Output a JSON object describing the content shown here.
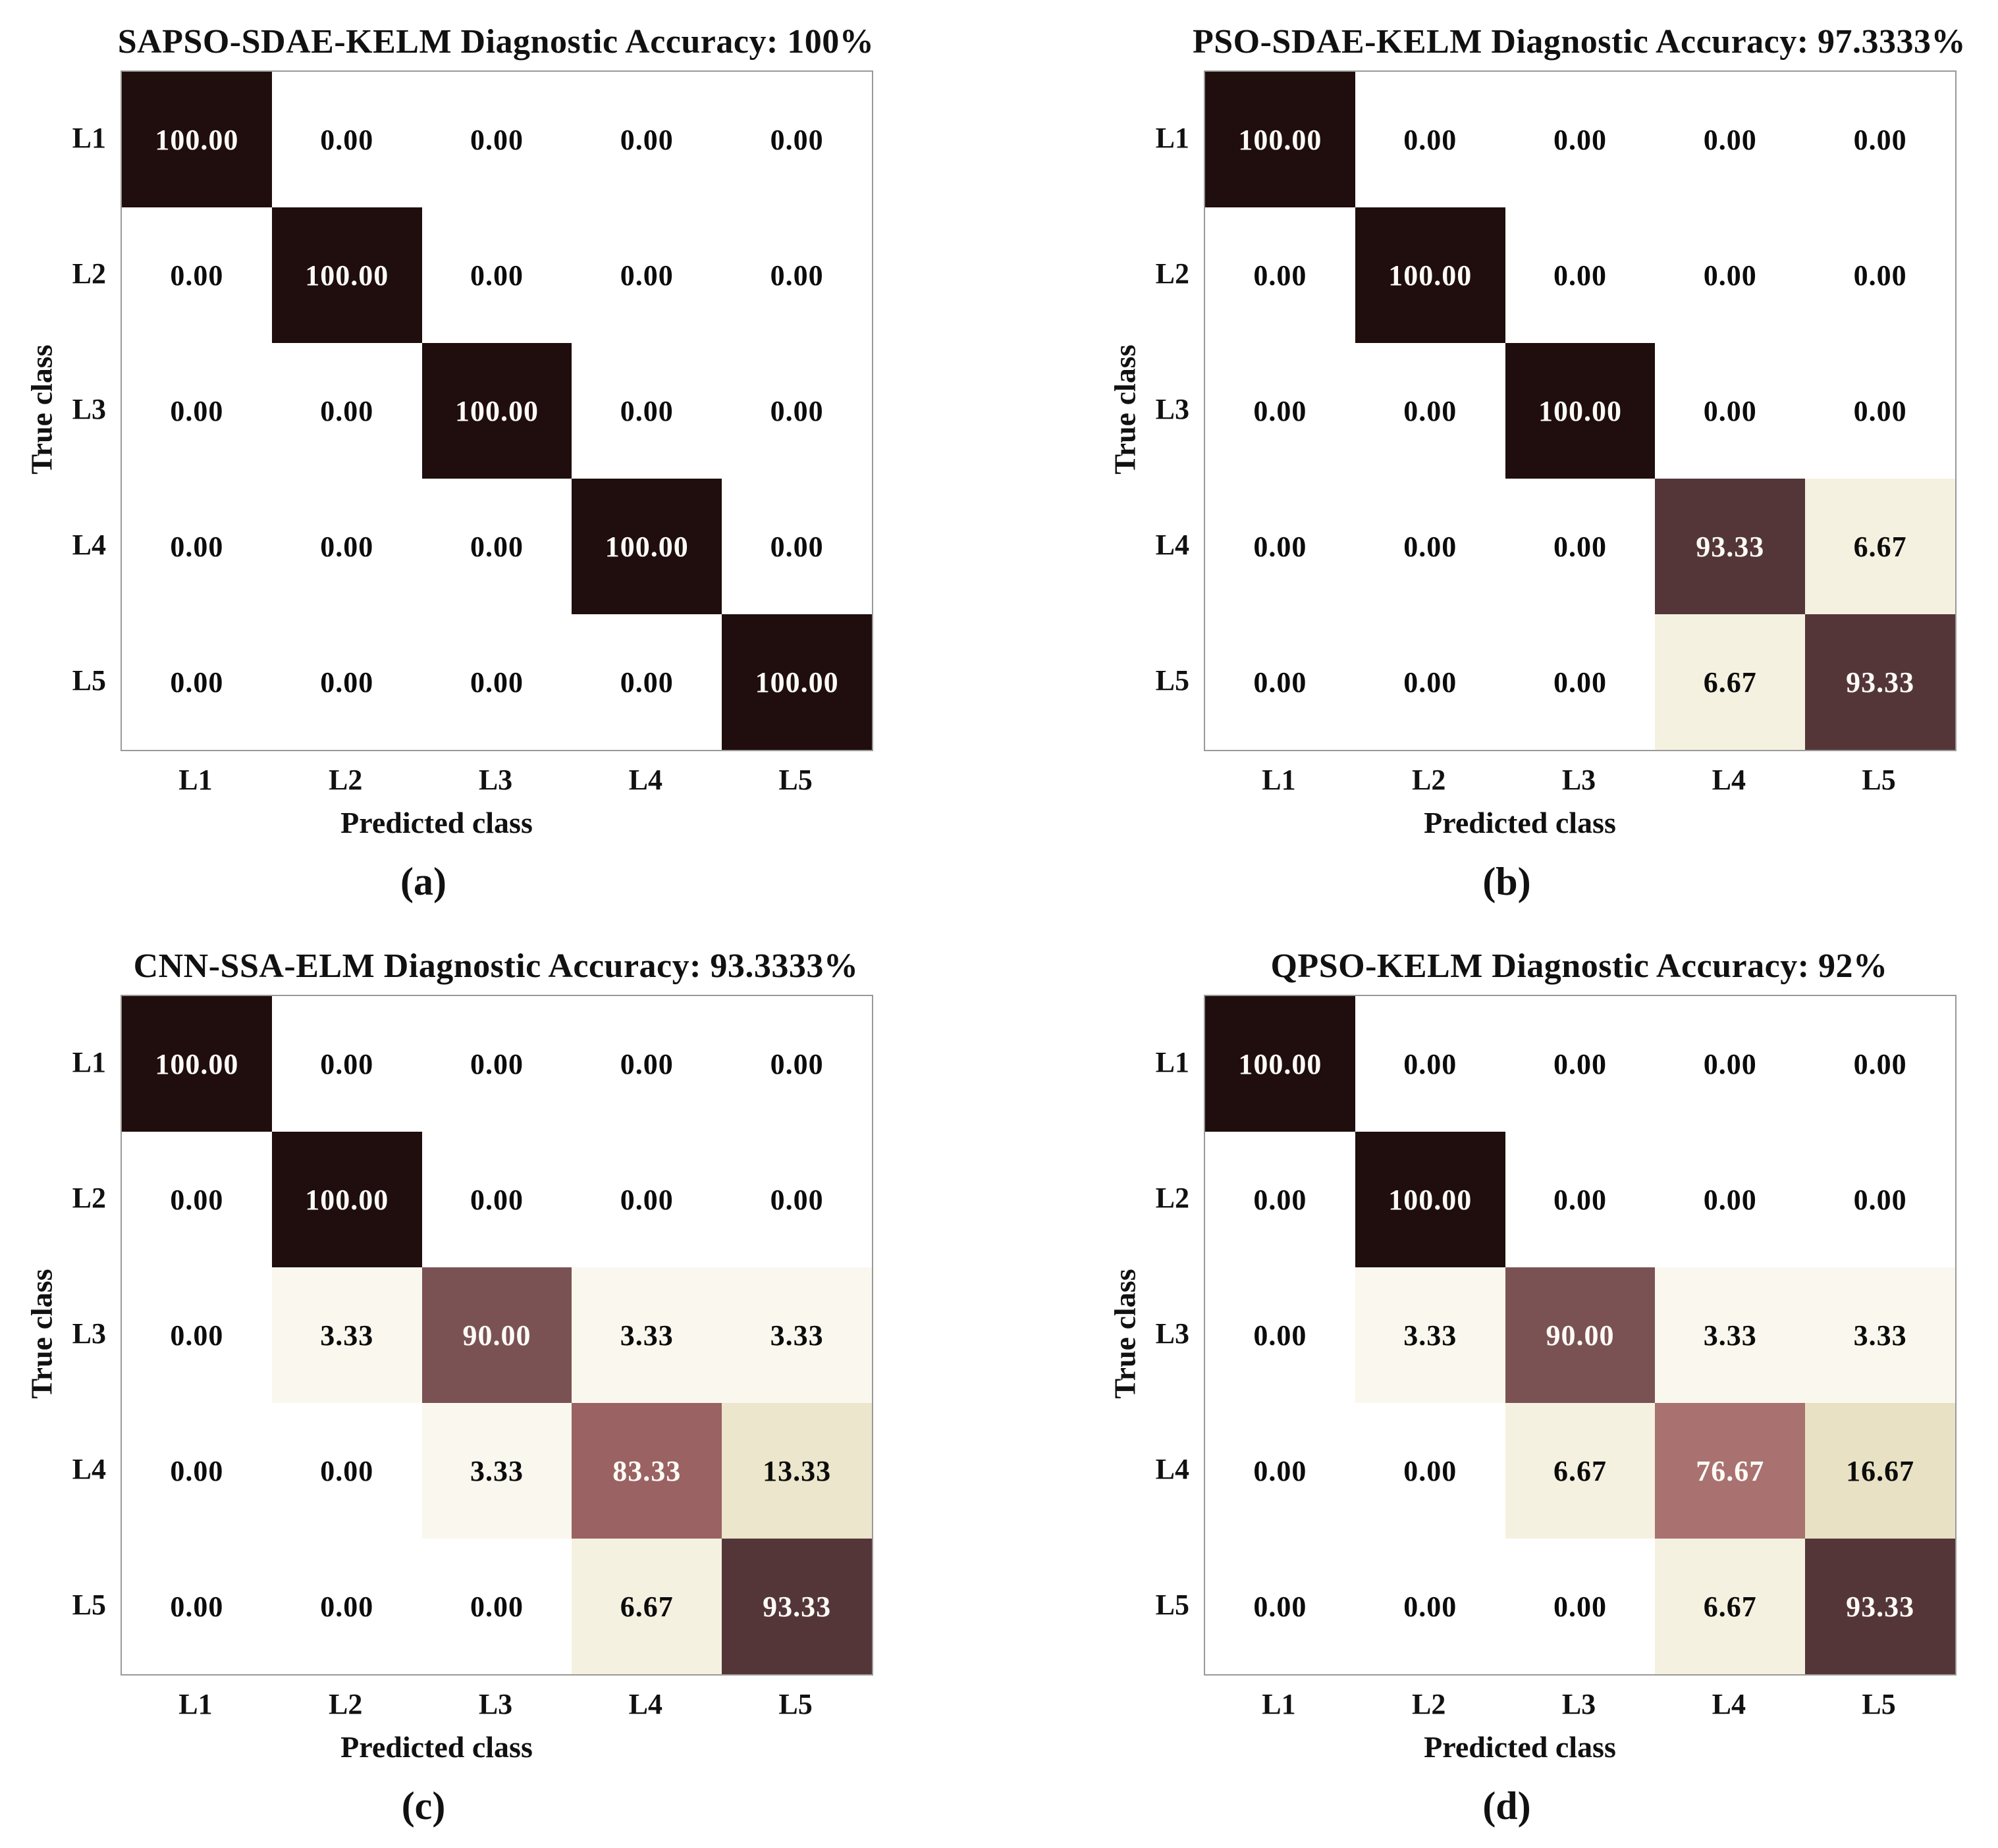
{
  "figure": {
    "background": "#ffffff"
  },
  "style": {
    "frame_color": "#999999",
    "label_text_color": "#111111",
    "cell_text_on_dark": "#fdfbf6",
    "cell_text_on_light": "#0c0c0c",
    "white_text_min": 70,
    "colormap": {
      "0.00": "#ffffff",
      "3.33": "#faf8ee",
      "6.67": "#f5f1e0",
      "13.33": "#ebe6cc",
      "16.67": "#e8e1c4",
      "76.67": "#a97170",
      "83.33": "#9a6263",
      "90.00": "#7b5254",
      "93.33": "#543639",
      "100.00": "#1f0e0d"
    }
  },
  "chart_data": [
    {
      "type": "heatmap",
      "title": "SAPSO-SDAE-KELM Diagnostic Accuracy: 100%",
      "caption": "(a)",
      "xlabel": "Predicted class",
      "ylabel": "True class",
      "x_tick_labels": [
        "L1",
        "L2",
        "L3",
        "L4",
        "L5"
      ],
      "y_tick_labels": [
        "L1",
        "L2",
        "L3",
        "L4",
        "L5"
      ],
      "value_range": [
        0,
        100
      ],
      "values": [
        [
          100.0,
          0.0,
          0.0,
          0.0,
          0.0
        ],
        [
          0.0,
          100.0,
          0.0,
          0.0,
          0.0
        ],
        [
          0.0,
          0.0,
          100.0,
          0.0,
          0.0
        ],
        [
          0.0,
          0.0,
          0.0,
          100.0,
          0.0
        ],
        [
          0.0,
          0.0,
          0.0,
          0.0,
          100.0
        ]
      ]
    },
    {
      "type": "heatmap",
      "title": "PSO-SDAE-KELM Diagnostic Accuracy: 97.3333%",
      "caption": "(b)",
      "xlabel": "Predicted class",
      "ylabel": "True class",
      "x_tick_labels": [
        "L1",
        "L2",
        "L3",
        "L4",
        "L5"
      ],
      "y_tick_labels": [
        "L1",
        "L2",
        "L3",
        "L4",
        "L5"
      ],
      "value_range": [
        0,
        100
      ],
      "values": [
        [
          100.0,
          0.0,
          0.0,
          0.0,
          0.0
        ],
        [
          0.0,
          100.0,
          0.0,
          0.0,
          0.0
        ],
        [
          0.0,
          0.0,
          100.0,
          0.0,
          0.0
        ],
        [
          0.0,
          0.0,
          0.0,
          93.33,
          6.67
        ],
        [
          0.0,
          0.0,
          0.0,
          6.67,
          93.33
        ]
      ]
    },
    {
      "type": "heatmap",
      "title": "CNN-SSA-ELM Diagnostic Accuracy: 93.3333%",
      "caption": "(c)",
      "xlabel": "Predicted class",
      "ylabel": "True class",
      "x_tick_labels": [
        "L1",
        "L2",
        "L3",
        "L4",
        "L5"
      ],
      "y_tick_labels": [
        "L1",
        "L2",
        "L3",
        "L4",
        "L5"
      ],
      "value_range": [
        0,
        100
      ],
      "values": [
        [
          100.0,
          0.0,
          0.0,
          0.0,
          0.0
        ],
        [
          0.0,
          100.0,
          0.0,
          0.0,
          0.0
        ],
        [
          0.0,
          3.33,
          90.0,
          3.33,
          3.33
        ],
        [
          0.0,
          0.0,
          3.33,
          83.33,
          13.33
        ],
        [
          0.0,
          0.0,
          0.0,
          6.67,
          93.33
        ]
      ]
    },
    {
      "type": "heatmap",
      "title": "QPSO-KELM Diagnostic Accuracy: 92%",
      "caption": "(d)",
      "xlabel": "Predicted class",
      "ylabel": "True class",
      "x_tick_labels": [
        "L1",
        "L2",
        "L3",
        "L4",
        "L5"
      ],
      "y_tick_labels": [
        "L1",
        "L2",
        "L3",
        "L4",
        "L5"
      ],
      "value_range": [
        0,
        100
      ],
      "values": [
        [
          100.0,
          0.0,
          0.0,
          0.0,
          0.0
        ],
        [
          0.0,
          100.0,
          0.0,
          0.0,
          0.0
        ],
        [
          0.0,
          3.33,
          90.0,
          3.33,
          3.33
        ],
        [
          0.0,
          0.0,
          6.67,
          76.67,
          16.67
        ],
        [
          0.0,
          0.0,
          0.0,
          6.67,
          93.33
        ]
      ]
    }
  ]
}
